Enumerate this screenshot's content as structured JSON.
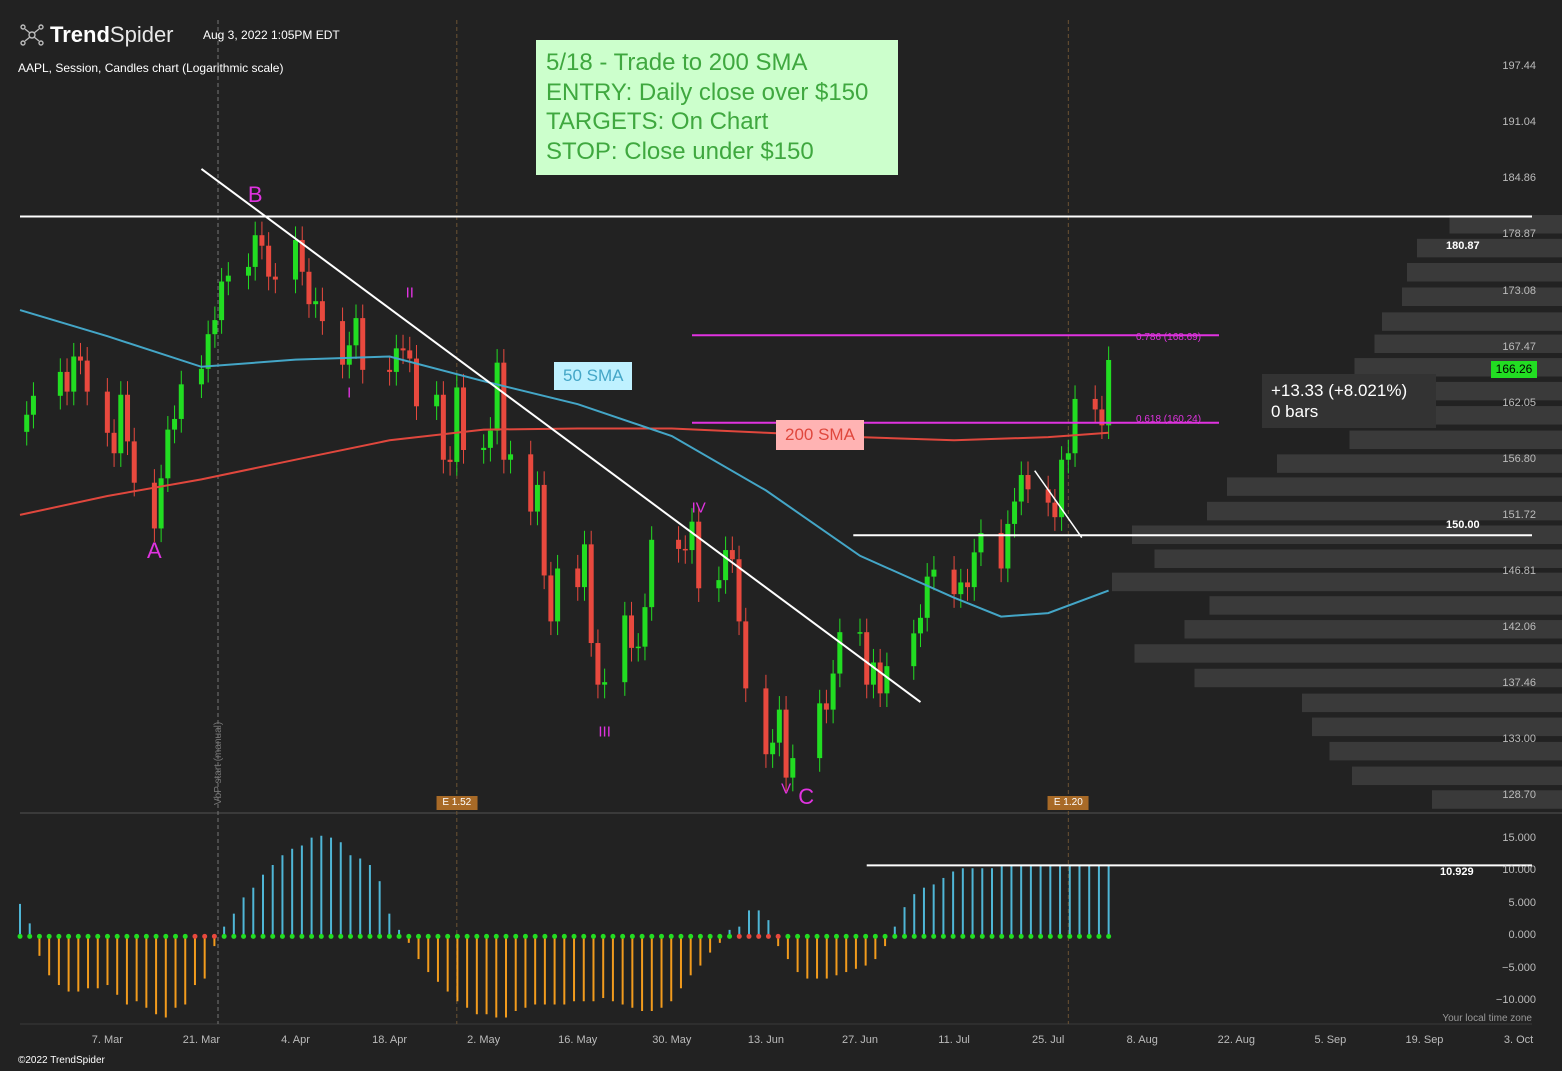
{
  "header": {
    "brand_bold": "Trend",
    "brand_light": "Spider",
    "timestamp": "Aug 3, 2022 1:05PM EDT",
    "chart_subtitle": "AAPL, Session, Candles chart (Logarithmic scale)",
    "copyright": "©2022 TrendSpider",
    "timezone_note": "Your local time zone"
  },
  "annotations": {
    "trade_note": [
      "5/18 - Trade to 200 SMA",
      "ENTRY: Daily close over $150",
      "TARGETS: On Chart",
      "STOP: Close under $150"
    ],
    "sma50_label": "50 SMA",
    "sma200_label": "200 SMA",
    "measure_change": "+13.33 (+8.021%)",
    "measure_bars": "0 bars",
    "current_price": "166.26",
    "level_high": "180.87",
    "level_150": "150.00",
    "fib_786": "0.786 (168.69)",
    "fib_618": "0.618 (160.24)",
    "vbp_label": "VbP start (manual)",
    "earnings": [
      {
        "label": "E 1.52",
        "date": "2022-04-28"
      },
      {
        "label": "E 1.20",
        "date": "2022-07-28"
      }
    ],
    "osc_current": "10.929",
    "wave_labels": [
      {
        "text": "A",
        "date": "2022-03-14",
        "price": 148.6
      },
      {
        "text": "B",
        "date": "2022-03-29",
        "price": 183.2
      },
      {
        "text": "I",
        "date": "2022-04-12",
        "price": 163.1
      },
      {
        "text": "II",
        "date": "2022-04-21",
        "price": 172.9
      },
      {
        "text": "III",
        "date": "2022-05-20",
        "price": 133.6
      },
      {
        "text": "IV",
        "date": "2022-06-03",
        "price": 152.4
      },
      {
        "text": "V",
        "date": "2022-06-16",
        "price": 129.2
      },
      {
        "text": "C",
        "date": "2022-06-19",
        "price": 128.6
      }
    ]
  },
  "colors": {
    "background": "#222222",
    "up": "#22dd22",
    "down": "#e8493e",
    "sma50": "#44a6c7",
    "sma200": "#e0473d",
    "fib": "#e033e0",
    "osc_up": "#4fb6d6",
    "osc_down": "#f29b1d",
    "text": "#ffffff"
  },
  "chart_data": {
    "type": "candlestick",
    "title": "AAPL, Session, Candles chart (Logarithmic scale)",
    "y_scale": "log",
    "ylim": [
      127.5,
      203
    ],
    "xlim": [
      "2022-02-22",
      "2022-10-05"
    ],
    "y_ticks": [
      197.44,
      191.04,
      184.86,
      178.87,
      173.08,
      167.47,
      162.05,
      156.8,
      151.72,
      146.81,
      142.06,
      137.46,
      133.0,
      128.7
    ],
    "x_ticks": [
      {
        "label": "7. Mar",
        "date": "2022-03-07"
      },
      {
        "label": "21. Mar",
        "date": "2022-03-21"
      },
      {
        "label": "4. Apr",
        "date": "2022-04-04"
      },
      {
        "label": "18. Apr",
        "date": "2022-04-18"
      },
      {
        "label": "2. May",
        "date": "2022-05-02"
      },
      {
        "label": "16. May",
        "date": "2022-05-16"
      },
      {
        "label": "30. May",
        "date": "2022-05-30"
      },
      {
        "label": "13. Jun",
        "date": "2022-06-13"
      },
      {
        "label": "27. Jun",
        "date": "2022-06-27"
      },
      {
        "label": "11. Jul",
        "date": "2022-07-11"
      },
      {
        "label": "25. Jul",
        "date": "2022-07-25"
      },
      {
        "label": "8. Aug",
        "date": "2022-08-08"
      },
      {
        "label": "22. Aug",
        "date": "2022-08-22"
      },
      {
        "label": "5. Sep",
        "date": "2022-09-05"
      },
      {
        "label": "19. Sep",
        "date": "2022-09-19"
      },
      {
        "label": "3. Oct",
        "date": "2022-10-03"
      }
    ],
    "closes": [
      {
        "date": "2022-02-23",
        "close": 161.0
      },
      {
        "date": "2022-02-24",
        "close": 162.8
      },
      {
        "date": "2022-02-28",
        "close": 165.1
      },
      {
        "date": "2022-03-01",
        "close": 163.2
      },
      {
        "date": "2022-03-02",
        "close": 166.6
      },
      {
        "date": "2022-03-03",
        "close": 166.2
      },
      {
        "date": "2022-03-04",
        "close": 163.2
      },
      {
        "date": "2022-03-07",
        "close": 159.3
      },
      {
        "date": "2022-03-08",
        "close": 157.4
      },
      {
        "date": "2022-03-09",
        "close": 162.9
      },
      {
        "date": "2022-03-10",
        "close": 158.5
      },
      {
        "date": "2022-03-11",
        "close": 154.7
      },
      {
        "date": "2022-03-14",
        "close": 150.6
      },
      {
        "date": "2022-03-15",
        "close": 155.1
      },
      {
        "date": "2022-03-16",
        "close": 159.6
      },
      {
        "date": "2022-03-17",
        "close": 160.6
      },
      {
        "date": "2022-03-18",
        "close": 163.9
      },
      {
        "date": "2022-03-21",
        "close": 165.4
      },
      {
        "date": "2022-03-22",
        "close": 168.8
      },
      {
        "date": "2022-03-23",
        "close": 170.2
      },
      {
        "date": "2022-03-24",
        "close": 174.1
      },
      {
        "date": "2022-03-25",
        "close": 174.7
      },
      {
        "date": "2022-03-28",
        "close": 175.6
      },
      {
        "date": "2022-03-29",
        "close": 178.9
      },
      {
        "date": "2022-03-30",
        "close": 177.8
      },
      {
        "date": "2022-03-31",
        "close": 174.6
      },
      {
        "date": "2022-04-01",
        "close": 174.3
      },
      {
        "date": "2022-04-04",
        "close": 178.4
      },
      {
        "date": "2022-04-05",
        "close": 175.1
      },
      {
        "date": "2022-04-06",
        "close": 171.8
      },
      {
        "date": "2022-04-07",
        "close": 172.1
      },
      {
        "date": "2022-04-08",
        "close": 170.1
      },
      {
        "date": "2022-04-11",
        "close": 165.8
      },
      {
        "date": "2022-04-12",
        "close": 167.7
      },
      {
        "date": "2022-04-13",
        "close": 170.4
      },
      {
        "date": "2022-04-14",
        "close": 165.3
      },
      {
        "date": "2022-04-18",
        "close": 165.1
      },
      {
        "date": "2022-04-19",
        "close": 167.4
      },
      {
        "date": "2022-04-20",
        "close": 167.2
      },
      {
        "date": "2022-04-21",
        "close": 166.4
      },
      {
        "date": "2022-04-22",
        "close": 161.8
      },
      {
        "date": "2022-04-25",
        "close": 162.9
      },
      {
        "date": "2022-04-26",
        "close": 156.8
      },
      {
        "date": "2022-04-27",
        "close": 156.6
      },
      {
        "date": "2022-04-28",
        "close": 163.6
      },
      {
        "date": "2022-04-29",
        "close": 157.7
      },
      {
        "date": "2022-05-02",
        "close": 157.9
      },
      {
        "date": "2022-05-03",
        "close": 159.5
      },
      {
        "date": "2022-05-04",
        "close": 166.0
      },
      {
        "date": "2022-05-05",
        "close": 156.8
      },
      {
        "date": "2022-05-06",
        "close": 157.3
      },
      {
        "date": "2022-05-09",
        "close": 152.1
      },
      {
        "date": "2022-05-10",
        "close": 154.5
      },
      {
        "date": "2022-05-11",
        "close": 146.5
      },
      {
        "date": "2022-05-12",
        "close": 142.6
      },
      {
        "date": "2022-05-13",
        "close": 147.1
      },
      {
        "date": "2022-05-16",
        "close": 145.5
      },
      {
        "date": "2022-05-17",
        "close": 149.2
      },
      {
        "date": "2022-05-18",
        "close": 140.8
      },
      {
        "date": "2022-05-19",
        "close": 137.4
      },
      {
        "date": "2022-05-20",
        "close": 137.6
      },
      {
        "date": "2022-05-23",
        "close": 143.1
      },
      {
        "date": "2022-05-24",
        "close": 140.4
      },
      {
        "date": "2022-05-25",
        "close": 140.5
      },
      {
        "date": "2022-05-26",
        "close": 143.8
      },
      {
        "date": "2022-05-27",
        "close": 149.6
      },
      {
        "date": "2022-05-31",
        "close": 148.8
      },
      {
        "date": "2022-06-01",
        "close": 148.7
      },
      {
        "date": "2022-06-02",
        "close": 151.2
      },
      {
        "date": "2022-06-03",
        "close": 145.4
      },
      {
        "date": "2022-06-06",
        "close": 146.1
      },
      {
        "date": "2022-06-07",
        "close": 148.7
      },
      {
        "date": "2022-06-08",
        "close": 147.9
      },
      {
        "date": "2022-06-09",
        "close": 142.6
      },
      {
        "date": "2022-06-10",
        "close": 137.1
      },
      {
        "date": "2022-06-13",
        "close": 131.9
      },
      {
        "date": "2022-06-14",
        "close": 132.8
      },
      {
        "date": "2022-06-15",
        "close": 135.4
      },
      {
        "date": "2022-06-16",
        "close": 130.1
      },
      {
        "date": "2022-06-17",
        "close": 131.6
      },
      {
        "date": "2022-06-21",
        "close": 135.9
      },
      {
        "date": "2022-06-22",
        "close": 135.4
      },
      {
        "date": "2022-06-23",
        "close": 138.3
      },
      {
        "date": "2022-06-24",
        "close": 141.7
      },
      {
        "date": "2022-06-27",
        "close": 141.7
      },
      {
        "date": "2022-06-28",
        "close": 137.4
      },
      {
        "date": "2022-06-29",
        "close": 139.2
      },
      {
        "date": "2022-06-30",
        "close": 136.7
      },
      {
        "date": "2022-07-01",
        "close": 138.9
      },
      {
        "date": "2022-07-05",
        "close": 141.6
      },
      {
        "date": "2022-07-06",
        "close": 142.9
      },
      {
        "date": "2022-07-07",
        "close": 146.4
      },
      {
        "date": "2022-07-08",
        "close": 147.0
      },
      {
        "date": "2022-07-11",
        "close": 144.9
      },
      {
        "date": "2022-07-12",
        "close": 145.9
      },
      {
        "date": "2022-07-13",
        "close": 145.5
      },
      {
        "date": "2022-07-14",
        "close": 148.5
      },
      {
        "date": "2022-07-15",
        "close": 150.2
      },
      {
        "date": "2022-07-18",
        "close": 147.1
      },
      {
        "date": "2022-07-19",
        "close": 151.0
      },
      {
        "date": "2022-07-20",
        "close": 153.0
      },
      {
        "date": "2022-07-21",
        "close": 155.4
      },
      {
        "date": "2022-07-22",
        "close": 154.1
      },
      {
        "date": "2022-07-25",
        "close": 152.9
      },
      {
        "date": "2022-07-26",
        "close": 151.6
      },
      {
        "date": "2022-07-27",
        "close": 156.8
      },
      {
        "date": "2022-07-28",
        "close": 157.4
      },
      {
        "date": "2022-07-29",
        "close": 162.5
      },
      {
        "date": "2022-08-01",
        "close": 161.5
      },
      {
        "date": "2022-08-02",
        "close": 160.0
      },
      {
        "date": "2022-08-03",
        "close": 166.26
      }
    ],
    "sma50": [
      {
        "date": "2022-02-22",
        "value": 171.2
      },
      {
        "date": "2022-03-07",
        "value": 168.6
      },
      {
        "date": "2022-03-21",
        "value": 165.6
      },
      {
        "date": "2022-04-04",
        "value": 166.3
      },
      {
        "date": "2022-04-18",
        "value": 166.6
      },
      {
        "date": "2022-05-02",
        "value": 164.2
      },
      {
        "date": "2022-05-16",
        "value": 162.0
      },
      {
        "date": "2022-05-30",
        "value": 159.0
      },
      {
        "date": "2022-06-13",
        "value": 154.0
      },
      {
        "date": "2022-06-27",
        "value": 148.2
      },
      {
        "date": "2022-07-11",
        "value": 144.6
      },
      {
        "date": "2022-07-18",
        "value": 143.0
      },
      {
        "date": "2022-07-25",
        "value": 143.3
      },
      {
        "date": "2022-08-03",
        "value": 145.2
      }
    ],
    "sma200": [
      {
        "date": "2022-02-22",
        "value": 151.8
      },
      {
        "date": "2022-03-07",
        "value": 153.5
      },
      {
        "date": "2022-03-21",
        "value": 155.0
      },
      {
        "date": "2022-04-04",
        "value": 156.8
      },
      {
        "date": "2022-04-18",
        "value": 158.6
      },
      {
        "date": "2022-05-02",
        "value": 159.6
      },
      {
        "date": "2022-05-16",
        "value": 159.7
      },
      {
        "date": "2022-05-30",
        "value": 159.7
      },
      {
        "date": "2022-06-13",
        "value": 159.3
      },
      {
        "date": "2022-06-27",
        "value": 158.9
      },
      {
        "date": "2022-07-11",
        "value": 158.6
      },
      {
        "date": "2022-07-25",
        "value": 158.9
      },
      {
        "date": "2022-08-03",
        "value": 159.3
      }
    ],
    "horizontal_levels": [
      180.87,
      150.0
    ],
    "fib_levels": [
      {
        "ratio": 0.786,
        "price": 168.69
      },
      {
        "ratio": 0.618,
        "price": 160.24
      }
    ],
    "trendline": [
      {
        "date": "2022-03-21",
        "price": 186.0
      },
      {
        "date": "2022-07-06",
        "price": 136.0
      }
    ],
    "volume_profile": [
      {
        "price": 180.0,
        "weight": 0.45
      },
      {
        "price": 177.5,
        "weight": 0.58
      },
      {
        "price": 175.0,
        "weight": 0.62
      },
      {
        "price": 172.5,
        "weight": 0.64
      },
      {
        "price": 170.0,
        "weight": 0.72
      },
      {
        "price": 167.8,
        "weight": 0.75
      },
      {
        "price": 165.5,
        "weight": 0.83
      },
      {
        "price": 163.2,
        "weight": 0.8
      },
      {
        "price": 160.9,
        "weight": 0.91
      },
      {
        "price": 158.6,
        "weight": 0.85
      },
      {
        "price": 156.4,
        "weight": 1.14
      },
      {
        "price": 154.3,
        "weight": 1.34
      },
      {
        "price": 152.1,
        "weight": 1.42
      },
      {
        "price": 150.0,
        "weight": 1.72
      },
      {
        "price": 147.9,
        "weight": 1.63
      },
      {
        "price": 145.9,
        "weight": 1.8
      },
      {
        "price": 143.9,
        "weight": 1.41
      },
      {
        "price": 141.9,
        "weight": 1.51
      },
      {
        "price": 139.9,
        "weight": 1.71
      },
      {
        "price": 137.9,
        "weight": 1.47
      },
      {
        "price": 135.9,
        "weight": 1.04
      },
      {
        "price": 134.0,
        "weight": 1.0
      },
      {
        "price": 132.1,
        "weight": 0.93
      },
      {
        "price": 130.2,
        "weight": 0.84
      },
      {
        "price": 128.4,
        "weight": 0.52
      }
    ],
    "oscillator": {
      "ylim": [
        -13.5,
        17
      ],
      "y_ticks": [
        15.0,
        10.0,
        5.0,
        0.0,
        -5.0,
        -10.0
      ],
      "y_tick_labels": [
        "15.000",
        "10.000",
        "5.000",
        "0.000",
        "−5.000",
        "−10.000"
      ],
      "current_value": 10.929,
      "values": [
        5,
        2,
        -3,
        -6,
        -7.5,
        -8.5,
        -8.5,
        -8,
        -8,
        -7.5,
        -9,
        -10.5,
        -10,
        -11,
        -12,
        -12.5,
        -11,
        -10.5,
        -7.5,
        -6.5,
        -1.5,
        1.5,
        3.5,
        6,
        7.5,
        9.5,
        11,
        12.5,
        13.5,
        14,
        15.2,
        15.5,
        15.2,
        14.5,
        12.5,
        12,
        11,
        8.5,
        3.5,
        1,
        -1,
        -3.5,
        -5.5,
        -7,
        -8.5,
        -10,
        -11,
        -12,
        -12,
        -12.5,
        -12.5,
        -11.5,
        -11,
        -10.5,
        -10.5,
        -10.5,
        -10.5,
        -10,
        -10,
        -10,
        -9.5,
        -10,
        -10.5,
        -11,
        -11.5,
        -11.5,
        -11,
        -10,
        -8,
        -6,
        -4.5,
        -2.5,
        -1,
        1,
        1.5,
        4,
        4,
        2.5,
        -1.5,
        -3.5,
        -5.5,
        -6.5,
        -6.5,
        -6.5,
        -6,
        -5.5,
        -5,
        -4.5,
        -3.5,
        -1.5,
        1.5,
        4.5,
        6.5,
        7.5,
        8,
        9,
        10,
        10.5,
        10.5,
        10.5,
        10.5,
        10.8,
        10.9,
        10.9,
        10.9,
        10.9,
        10.9,
        10.9,
        10.9,
        10.9,
        10.9,
        10.9,
        10.929
      ]
    }
  }
}
